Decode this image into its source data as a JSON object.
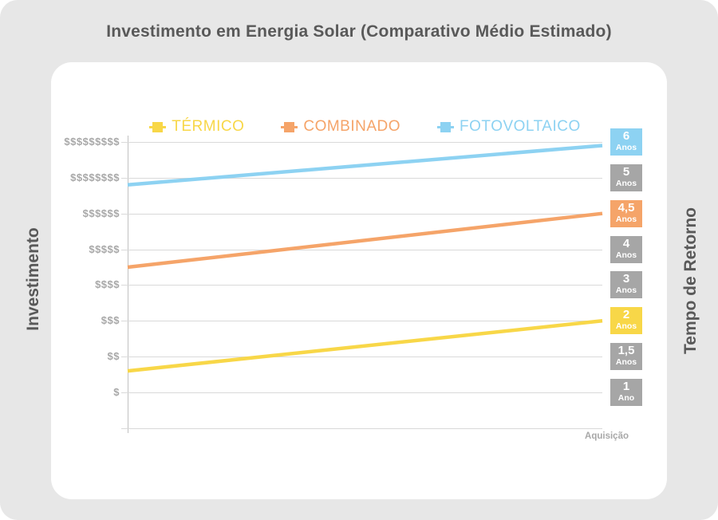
{
  "title": "Investimento em Energia Solar (Comparativo Médio Estimado)",
  "axis_left_label": "Investimento",
  "axis_right_label": "Tempo de Retorno",
  "x_axis_label": "Aquisição",
  "colors": {
    "background": "#E7E7E7",
    "card": "#FFFFFF",
    "title_text": "#595959",
    "grid": "#D9D9D9",
    "axis_line": "#C2C2C2",
    "tick_text": "#A8A8A8",
    "badge_gray": "#A6A6A6",
    "yellow": "#F8D748",
    "orange": "#F5A469",
    "blue": "#8DD2F2"
  },
  "legend": [
    {
      "label": "TÉRMICO",
      "color": "#F8D748"
    },
    {
      "label": "COMBINADO",
      "color": "#F5A469"
    },
    {
      "label": "FOTOVOLTAICO",
      "color": "#8DD2F2"
    }
  ],
  "rows": [
    {
      "tick": "$$$$$$$$$",
      "badge_value": "6",
      "badge_unit": "Anos",
      "badge_color": "#8DD2F2"
    },
    {
      "tick": "$$$$$$$$",
      "badge_value": "5",
      "badge_unit": "Anos",
      "badge_color": "#A6A6A6"
    },
    {
      "tick": "$$$$$$",
      "badge_value": "4,5",
      "badge_unit": "Anos",
      "badge_color": "#F5A469"
    },
    {
      "tick": "$$$$$",
      "badge_value": "4",
      "badge_unit": "Anos",
      "badge_color": "#A6A6A6"
    },
    {
      "tick": "$$$$",
      "badge_value": "3",
      "badge_unit": "Anos",
      "badge_color": "#A6A6A6"
    },
    {
      "tick": "$$$",
      "badge_value": "2",
      "badge_unit": "Anos",
      "badge_color": "#F8D748"
    },
    {
      "tick": "$$",
      "badge_value": "1,5",
      "badge_unit": "Anos",
      "badge_color": "#A6A6A6"
    },
    {
      "tick": "$",
      "badge_value": "1",
      "badge_unit": "Ano",
      "badge_color": "#A6A6A6"
    }
  ],
  "chart_data": {
    "type": "line",
    "title": "Investimento em Energia Solar (Comparativo Médio Estimado)",
    "ylabel": "Investimento",
    "ylabel_right": "Tempo de Retorno",
    "x_tick_labels": [
      "Aquisição"
    ],
    "x_tick_position": "right-end",
    "grid": true,
    "legend_position": "top-center",
    "y_tick_labels_bottom_to_top": [
      "$",
      "$$",
      "$$$",
      "$$$$",
      "$$$$$",
      "$$$$$$",
      "$$$$$$$$",
      "$$$$$$$$$"
    ],
    "y_tick_values_bottom_to_top": [
      1,
      2,
      3,
      4,
      5,
      6,
      8,
      9
    ],
    "series": [
      {
        "name": "TÉRMICO",
        "color": "#F8D748",
        "dollar_start": 1.6,
        "dollar_end": 3.0,
        "end_tick": "$$$",
        "payback": "2 Anos"
      },
      {
        "name": "COMBINADO",
        "color": "#F5A469",
        "dollar_start": 4.5,
        "dollar_end": 6.0,
        "end_tick": "$$$$$$",
        "payback": "4,5 Anos"
      },
      {
        "name": "FOTOVOLTAICO",
        "color": "#8DD2F2",
        "dollar_start": 7.6,
        "dollar_end": 8.9,
        "end_tick": "$$$$$$$$$",
        "payback": "6 Anos"
      }
    ]
  }
}
